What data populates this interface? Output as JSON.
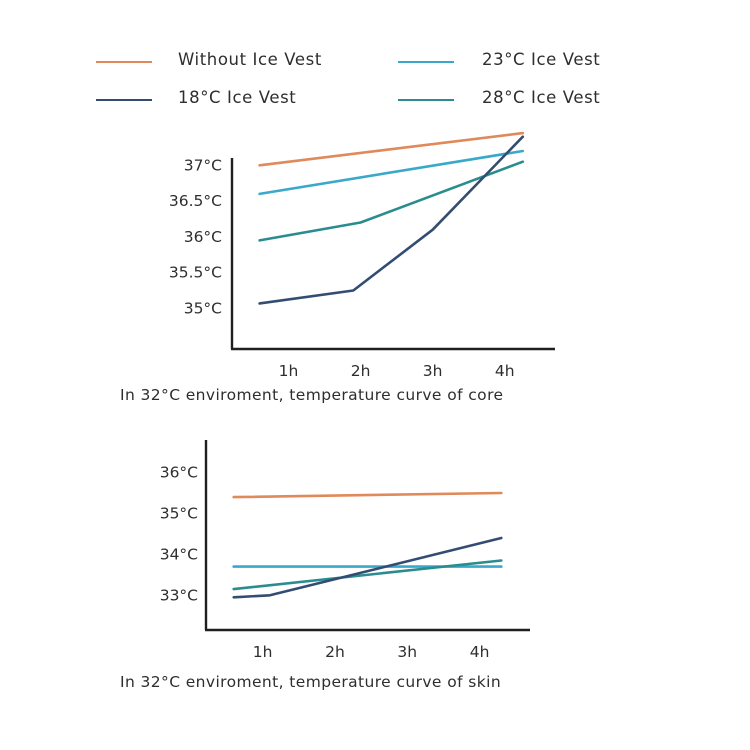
{
  "legend": [
    {
      "name": "Without Ice Vest",
      "color": "#e0895a"
    },
    {
      "name": "18°C  Ice Vest",
      "color": "#334d72"
    },
    {
      "name": "23°C Ice Vest",
      "color": "#3aa9c9"
    },
    {
      "name": "28°C Ice Vest",
      "color": "#2a8c8f"
    }
  ],
  "chart_data": [
    {
      "type": "line",
      "title": "In 32°C enviroment, temperature curve of core",
      "categories": [
        "1h",
        "2h",
        "3h",
        "4h"
      ],
      "x_range": [
        0.3,
        4.6
      ],
      "ylim": [
        34.6,
        37.2
      ],
      "y_ticks": [
        35,
        35.5,
        36,
        36.5,
        37
      ],
      "y_tick_labels": [
        "35°C",
        "35.5°C",
        "36°C",
        "36.5°C",
        "37°C"
      ],
      "grid": false,
      "series": [
        {
          "name": "Without Ice Vest",
          "x": [
            0.6,
            4.25
          ],
          "y": [
            37.0,
            37.45
          ]
        },
        {
          "name": "23°C Ice Vest",
          "x": [
            0.6,
            4.25
          ],
          "y": [
            36.6,
            37.2
          ]
        },
        {
          "name": "28°C Ice Vest",
          "x": [
            0.6,
            2.0,
            4.25
          ],
          "y": [
            35.95,
            36.2,
            37.05
          ]
        },
        {
          "name": "18°C  Ice Vest",
          "x": [
            0.6,
            1.9,
            3.0,
            4.25
          ],
          "y": [
            35.07,
            35.25,
            36.1,
            37.4
          ]
        }
      ]
    },
    {
      "type": "line",
      "title": "In 32°C enviroment, temperature curve of skin",
      "categories": [
        "1h",
        "2h",
        "3h",
        "4h"
      ],
      "x_range": [
        0.3,
        4.6
      ],
      "ylim": [
        32.2,
        36.6
      ],
      "y_ticks": [
        33,
        34,
        35,
        36
      ],
      "y_tick_labels": [
        "33°C",
        "34°C",
        "35°C",
        "36°C"
      ],
      "grid": false,
      "series": [
        {
          "name": "Without Ice Vest",
          "x": [
            0.6,
            4.3
          ],
          "y": [
            35.4,
            35.5
          ]
        },
        {
          "name": "23°C Ice Vest",
          "x": [
            0.6,
            4.3
          ],
          "y": [
            33.7,
            33.7
          ]
        },
        {
          "name": "28°C Ice Vest",
          "x": [
            0.6,
            4.3
          ],
          "y": [
            33.15,
            33.85
          ]
        },
        {
          "name": "18°C  Ice Vest",
          "x": [
            0.6,
            1.1,
            4.3
          ],
          "y": [
            32.95,
            33.0,
            34.4
          ]
        }
      ]
    }
  ]
}
